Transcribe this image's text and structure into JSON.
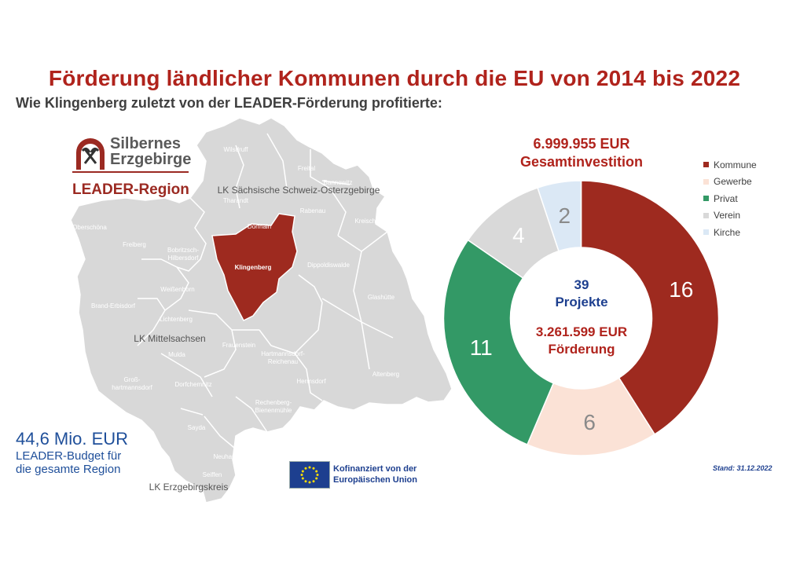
{
  "title": "Förderung ländlicher Kommunen durch die EU von 2014 bis 2022",
  "subtitle": "Wie Klingenberg zuletzt von der LEADER-Förderung profitierte:",
  "logo": {
    "line1": "Silbernes",
    "line2": "Erzgebirge",
    "line3": "LEADER-Region"
  },
  "map": {
    "highlight": "Klingenberg",
    "highlight_color": "#9e2a1f",
    "region_color": "#d8d8d8",
    "labels": [
      {
        "text": "Wilsdruff"
      },
      {
        "text": "Freital"
      },
      {
        "text": "Bannewitz"
      },
      {
        "text": "LK Sächsische Schweiz-Osterzgebirge"
      },
      {
        "text": "Tharandt"
      },
      {
        "text": "Rabenau"
      },
      {
        "text": "Kreischa"
      },
      {
        "text": "Dorfhain"
      },
      {
        "text": "Oberschöna"
      },
      {
        "text": "Freiberg"
      },
      {
        "text": "Bobritzsch-\nHilbersdorf"
      },
      {
        "text": "Dippoldiswalde"
      },
      {
        "text": "Weißenborn"
      },
      {
        "text": "Brand-Erbisdorf"
      },
      {
        "text": "Glashütte"
      },
      {
        "text": "Lichtenberg"
      },
      {
        "text": "LK Mittelsachsen"
      },
      {
        "text": "Frauenstein"
      },
      {
        "text": "Mulda"
      },
      {
        "text": "Hartmannsdorf-\nReichenau"
      },
      {
        "text": "Groß-\nhartmannsdorf"
      },
      {
        "text": "Dorfchemnitz"
      },
      {
        "text": "Altenberg"
      },
      {
        "text": "Hermsdorf"
      },
      {
        "text": "Rechenberg-\nBienenmühle"
      },
      {
        "text": "Sayda"
      },
      {
        "text": "Neuhausen"
      },
      {
        "text": "Seiffen"
      },
      {
        "text": "LK Erzgebirgskreis"
      }
    ]
  },
  "budget": {
    "amount": "44,6 Mio. EUR",
    "desc1": "LEADER-Budget für",
    "desc2": "die gesamte Region"
  },
  "eu": {
    "line1": "Kofinanziert von der",
    "line2": "Europäischen Union"
  },
  "stand": "Stand: 31.12.2022",
  "total": {
    "amount": "6.999.955 EUR",
    "label": "Gesamtinvestition"
  },
  "center": {
    "count": "39",
    "count_label": "Projekte",
    "funding": "3.261.599 EUR",
    "funding_label": "Förderung"
  },
  "chart_data": {
    "type": "pie",
    "donut": true,
    "series": [
      {
        "name": "Kommune",
        "value": 16,
        "color": "#9e2a1f",
        "label_color": "#ffffff"
      },
      {
        "name": "Gewerbe",
        "value": 6,
        "color": "#fbe2d6",
        "label_color": "#8a8a8a"
      },
      {
        "name": "Privat",
        "value": 11,
        "color": "#339966",
        "label_color": "#ffffff"
      },
      {
        "name": "Verein",
        "value": 4,
        "color": "#d9d9d9",
        "label_color": "#ffffff"
      },
      {
        "name": "Kirche",
        "value": 2,
        "color": "#dbe8f5",
        "label_color": "#8a8a8a"
      }
    ],
    "legend": "right"
  }
}
